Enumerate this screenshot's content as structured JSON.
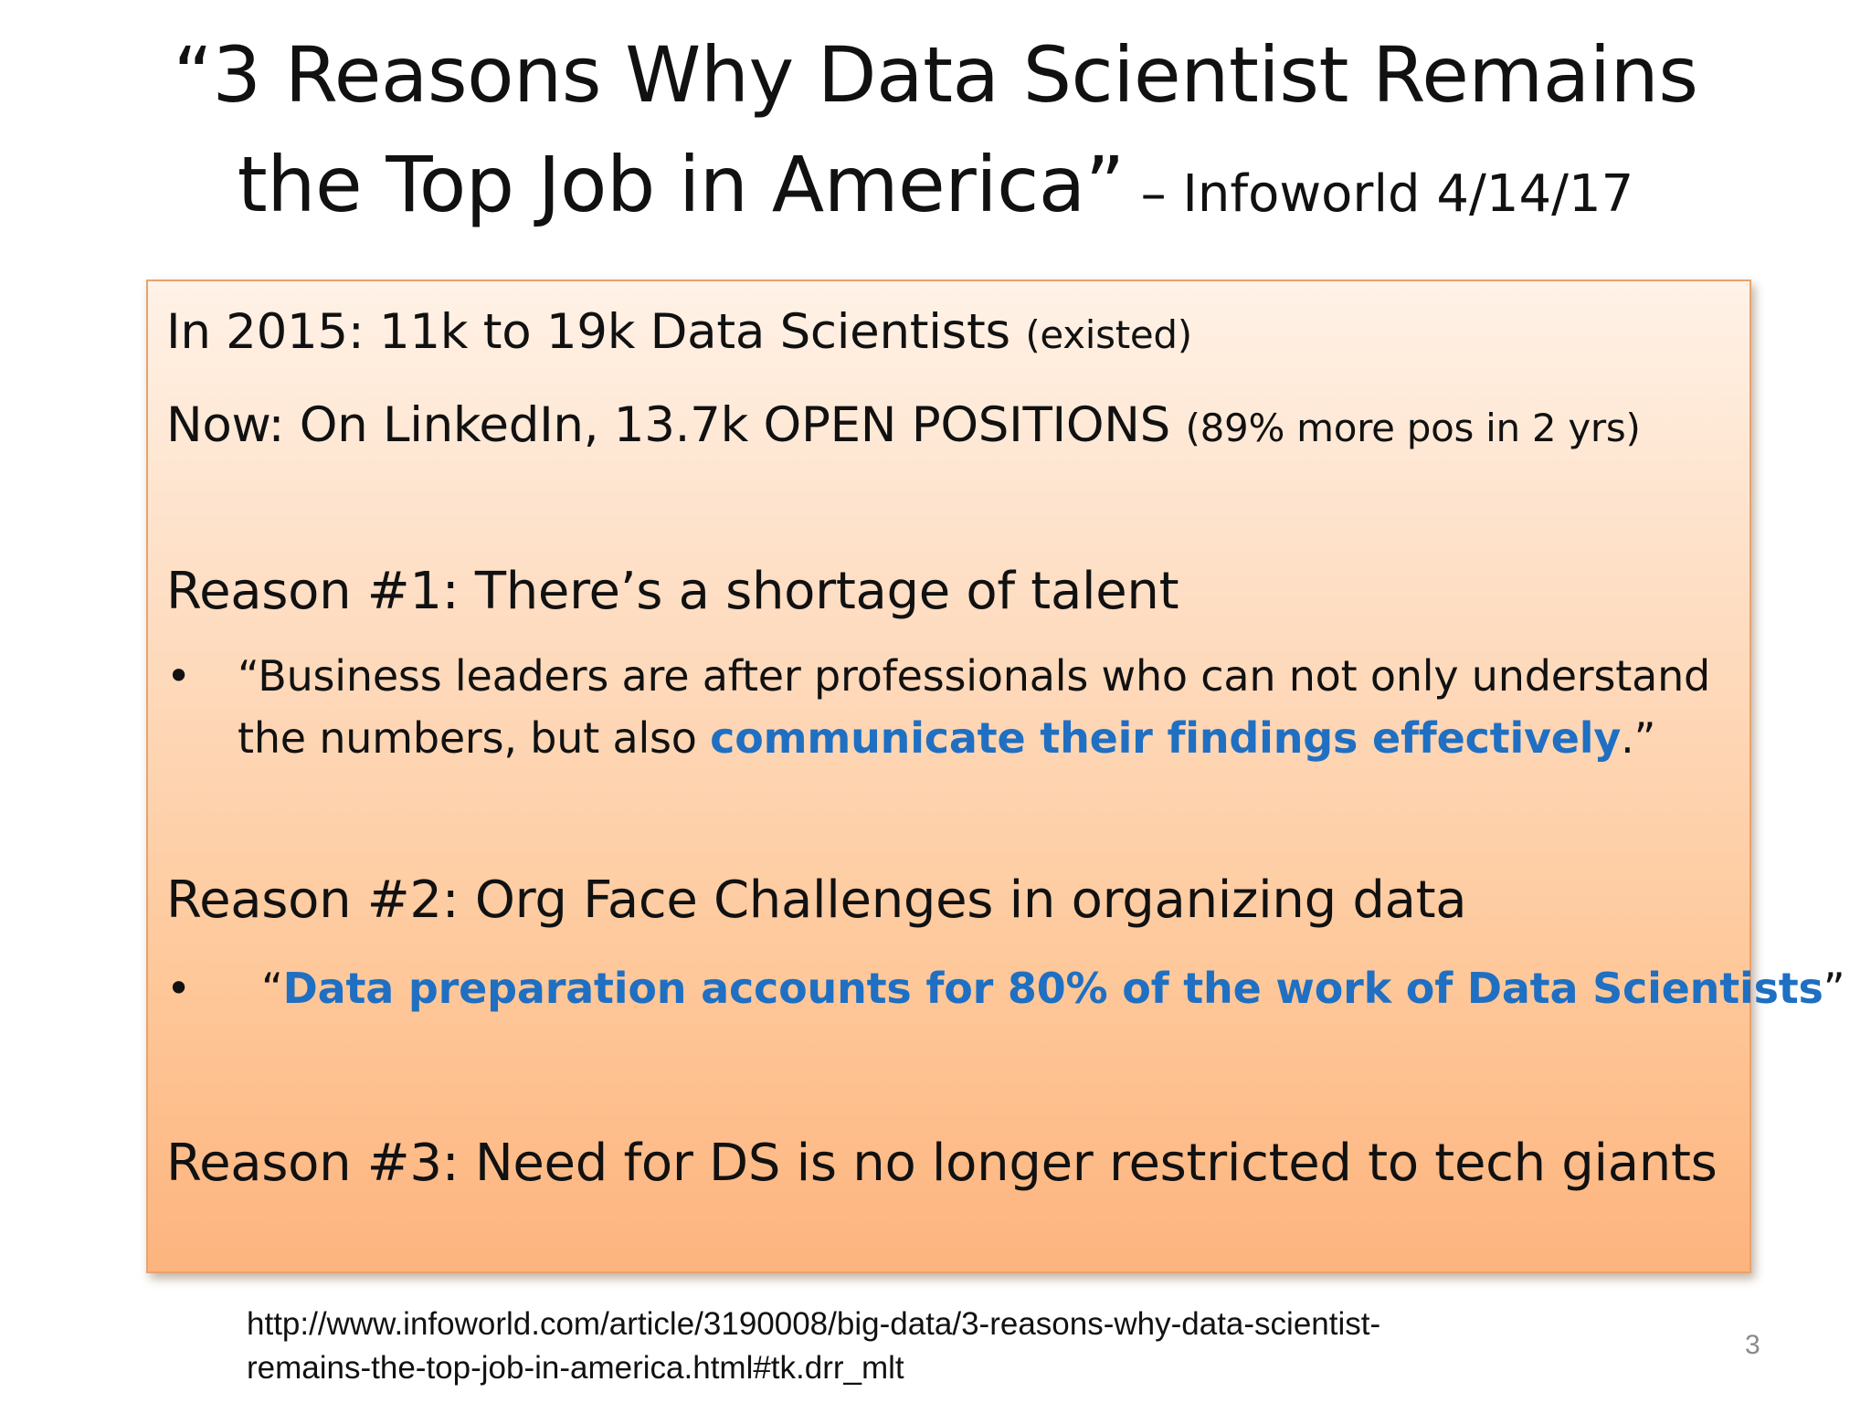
{
  "title": {
    "line1": "“3 Reasons Why Data Scientist Remains",
    "line2": "the Top Job in America”",
    "source": " – Infoworld 4/14/17"
  },
  "content": {
    "p2015": {
      "main": "In 2015:  11k to 19k Data Scientists ",
      "note": "(existed)"
    },
    "now": {
      "main": "Now:  On LinkedIn, 13.7k OPEN POSITIONS  ",
      "note": "(89% more pos in 2 yrs)"
    },
    "reason1": {
      "heading": "Reason #1: There’s a shortage of talent",
      "bullet_symbol": "•",
      "quote_start": "“Business leaders are after professionals who can not only understand the numbers, but also ",
      "quote_highlight": "communicate their findings effectively",
      "quote_end": ".”"
    },
    "reason2": {
      "heading": "Reason #2: Org Face Challenges in organizing data",
      "bullet_symbol": "•",
      "quote_open": "“",
      "quote_highlight": "Data preparation accounts for 80% of the work of Data Scientists",
      "quote_close": "”"
    },
    "reason3": {
      "heading": "Reason #3: Need for DS is no longer restricted to tech giants"
    }
  },
  "footer": {
    "url_line1": "http://www.infoworld.com/article/3190008/big-data/3-reasons-why-data-scientist-",
    "url_line2": "remains-the-top-job-in-america.html#tk.drr_mlt",
    "page_number": "3"
  },
  "colors": {
    "highlight": "#1f6fc2",
    "box_top": "#fff2e7",
    "box_bottom": "#fdb47e",
    "box_border": "#e7a36d"
  }
}
